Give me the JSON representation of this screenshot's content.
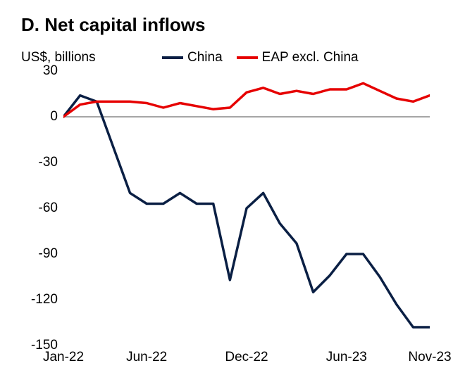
{
  "title": "D. Net capital inflows",
  "chart": {
    "type": "line",
    "y_label": "US$, billions",
    "ylim": [
      -150,
      30
    ],
    "ytick_step": 30,
    "yticks": [
      30,
      0,
      -30,
      -60,
      -90,
      -120,
      -150
    ],
    "xlim": [
      0,
      22
    ],
    "xticks": [
      {
        "pos": 0,
        "label": "Jan-22"
      },
      {
        "pos": 5,
        "label": "Jun-22"
      },
      {
        "pos": 11,
        "label": "Dec-22"
      },
      {
        "pos": 17,
        "label": "Jun-23"
      },
      {
        "pos": 22,
        "label": "Nov-23"
      }
    ],
    "background_color": "#ffffff",
    "axis_color": "#888888",
    "line_width": 3.5,
    "title_fontsize": 26,
    "label_fontsize": 19,
    "series": [
      {
        "name": "China",
        "color": "#0a1f44",
        "data": [
          0,
          14,
          10,
          -20,
          -50,
          -57,
          -57,
          -50,
          -57,
          -57,
          -107,
          -60,
          -50,
          -70,
          -83,
          -115,
          -104,
          -90,
          -90,
          -105,
          -123,
          -138,
          -138
        ]
      },
      {
        "name": "EAP excl. China",
        "color": "#e60000",
        "data": [
          0,
          8,
          10,
          10,
          10,
          9,
          6,
          9,
          7,
          5,
          6,
          16,
          19,
          15,
          17,
          15,
          18,
          18,
          22,
          17,
          12,
          10,
          14
        ]
      }
    ]
  }
}
